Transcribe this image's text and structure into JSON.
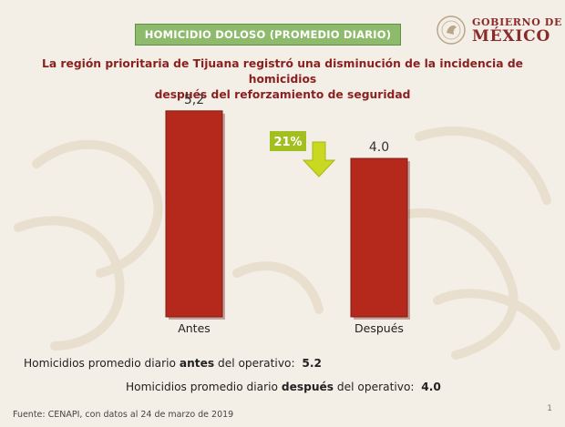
{
  "header": {
    "title_box": "HOMICIDIO DOLOSO (PROMEDIO DIARIO)",
    "logo_line1": "GOBIERNO DE",
    "logo_line2": "MÉXICO"
  },
  "subtitle": {
    "line1": "La región prioritaria de Tijuana registró una disminución de la incidencia de homicidios",
    "line2": "después del reforzamiento de seguridad"
  },
  "chart_data": {
    "type": "bar",
    "categories": [
      "Antes",
      "Después"
    ],
    "values": [
      5.2,
      4.0
    ],
    "data_labels": [
      "5,2",
      "4.0"
    ],
    "bar_color": "#b5281c",
    "annotation": {
      "text": "21%",
      "bg_color": "#a3be1f",
      "arrow_color": "#c9d820"
    }
  },
  "info": {
    "before": {
      "prefix": "Homicidios promedio diario ",
      "bold": "antes",
      "suffix": " del operativo:",
      "value": "5.2"
    },
    "after": {
      "prefix": "Homicidios promedio diario ",
      "bold": "después",
      "suffix": " del operativo:",
      "value": "4.0"
    }
  },
  "footer": {
    "source": "Fuente: CENAPI, con datos al 24 de marzo de 2019",
    "page_number": "1"
  }
}
